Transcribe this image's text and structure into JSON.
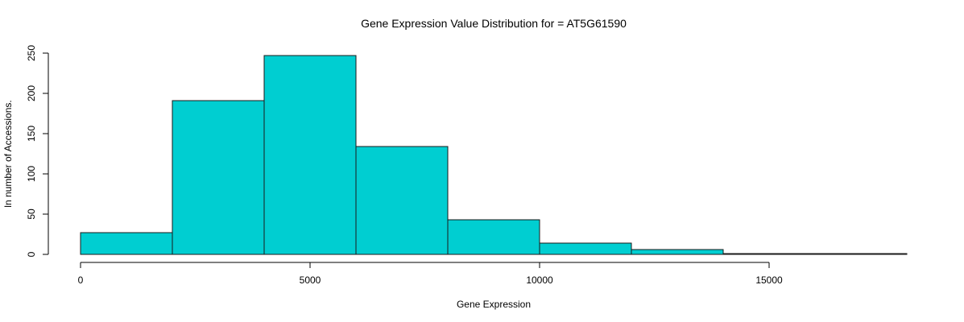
{
  "chart_data": {
    "type": "bar",
    "title": "Gene Expression Value Distribution for = AT5G61590",
    "xlabel": "Gene Expression",
    "ylabel": "ln number of Accessions.",
    "bar_color": "#00CED1",
    "xlim": [
      0,
      18000
    ],
    "ylim": [
      0,
      250
    ],
    "x_ticks": [
      0,
      5000,
      10000,
      15000
    ],
    "y_ticks": [
      0,
      50,
      100,
      150,
      200,
      250
    ],
    "bins": [
      {
        "start": 0,
        "end": 2000,
        "count": 27
      },
      {
        "start": 2000,
        "end": 4000,
        "count": 191
      },
      {
        "start": 4000,
        "end": 6000,
        "count": 247
      },
      {
        "start": 6000,
        "end": 8000,
        "count": 134
      },
      {
        "start": 8000,
        "end": 10000,
        "count": 43
      },
      {
        "start": 10000,
        "end": 12000,
        "count": 14
      },
      {
        "start": 12000,
        "end": 14000,
        "count": 6
      },
      {
        "start": 14000,
        "end": 16000,
        "count": 1
      },
      {
        "start": 16000,
        "end": 18000,
        "count": 1
      }
    ],
    "grid": false,
    "legend": "none"
  }
}
